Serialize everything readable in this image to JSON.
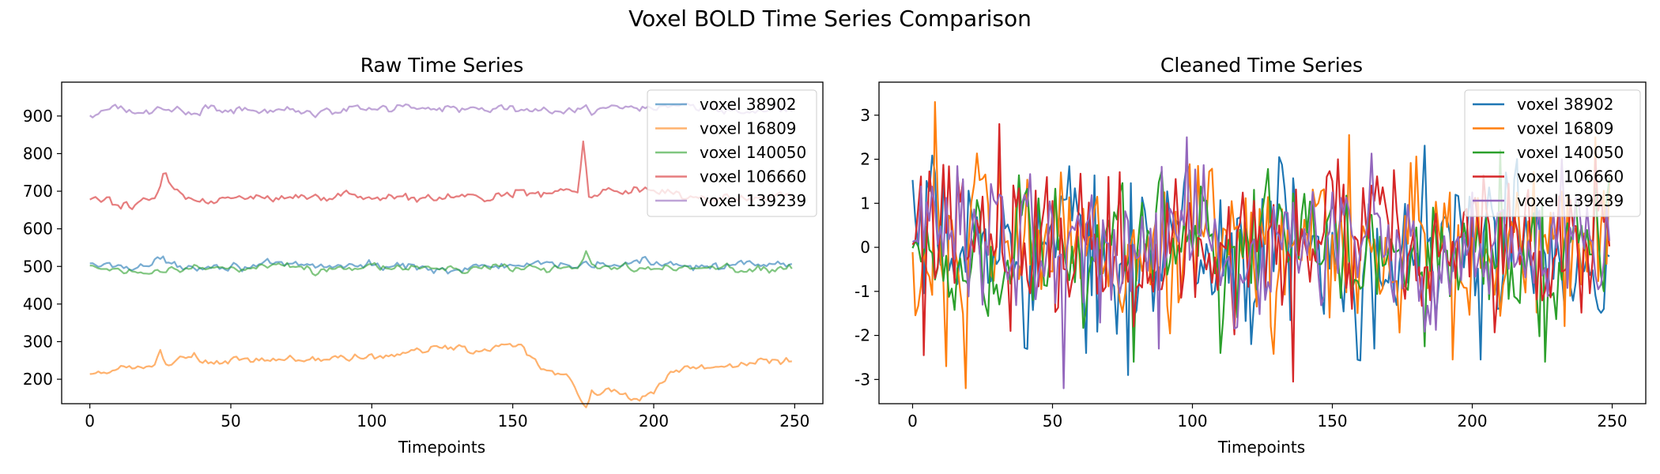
{
  "figure": {
    "title": "Voxel BOLD Time Series Comparison"
  },
  "colors": {
    "voxel_38902": "#1f77b4",
    "voxel_16809": "#ff7f0e",
    "voxel_140050": "#2ca02c",
    "voxel_106660": "#d62728",
    "voxel_139239": "#9467bd"
  },
  "chart_data": [
    {
      "type": "line",
      "title": "Raw Time Series",
      "xlabel": "Timepoints",
      "ylabel": "",
      "xlim": [
        -10,
        260
      ],
      "ylim": [
        135,
        990
      ],
      "xticks": [
        0,
        50,
        100,
        150,
        200,
        250
      ],
      "yticks": [
        200,
        300,
        400,
        500,
        600,
        700,
        800,
        900
      ],
      "legend_location": "top-right",
      "grid": false,
      "x": {
        "start": 0,
        "end": 249,
        "step": 1
      },
      "series": [
        {
          "name": "voxel 38902",
          "color": "#1f77b4",
          "opacity": 0.6,
          "mean": 502,
          "amplitude": 9,
          "smoothness": 0.45,
          "events": [
            [
              25,
              22,
              2
            ],
            [
              128,
              -10,
              8
            ],
            [
              175,
              14,
              2
            ],
            [
              200,
              10,
              8
            ]
          ]
        },
        {
          "name": "voxel 16809",
          "color": "#ff7f0e",
          "opacity": 0.6,
          "mean": 232,
          "amplitude": 10,
          "smoothness": 0.5,
          "events": [
            [
              0,
              -25,
              6
            ],
            [
              25,
              45,
              1
            ],
            [
              35,
              25,
              4
            ],
            [
              60,
              15,
              15
            ],
            [
              100,
              25,
              20
            ],
            [
              130,
              45,
              12
            ],
            [
              150,
              55,
              5
            ],
            [
              162,
              0,
              6
            ],
            [
              176,
              -55,
              3
            ],
            [
              178,
              40,
              1
            ],
            [
              182,
              -50,
              10
            ],
            [
              195,
              -60,
              6
            ],
            [
              205,
              -5,
              10
            ],
            [
              240,
              15,
              10
            ]
          ]
        },
        {
          "name": "voxel 140050",
          "color": "#2ca02c",
          "opacity": 0.6,
          "mean": 496,
          "amplitude": 8,
          "smoothness": 0.45,
          "events": [
            [
              18,
              -12,
              4
            ],
            [
              80,
              -12,
              2
            ],
            [
              176,
              45,
              2
            ],
            [
              235,
              -8,
              6
            ]
          ]
        },
        {
          "name": "voxel 106660",
          "color": "#d62728",
          "opacity": 0.6,
          "mean": 683,
          "amplitude": 11,
          "smoothness": 0.5,
          "events": [
            [
              12,
              -20,
              6
            ],
            [
              26,
              45,
              2
            ],
            [
              30,
              35,
              3
            ],
            [
              40,
              -8,
              6
            ],
            [
              160,
              15,
              10
            ],
            [
              175,
              140,
              1
            ],
            [
              195,
              20,
              10
            ]
          ]
        },
        {
          "name": "voxel 139239",
          "color": "#9467bd",
          "opacity": 0.6,
          "mean": 915,
          "amplitude": 9,
          "smoothness": 0.45,
          "events": [
            [
              0,
              -12,
              3
            ],
            [
              24,
              18,
              1
            ],
            [
              80,
              -15,
              2
            ],
            [
              120,
              8,
              20
            ],
            [
              175,
              15,
              2
            ],
            [
              178,
              -10,
              3
            ],
            [
              205,
              12,
              10
            ]
          ]
        }
      ]
    },
    {
      "type": "line",
      "title": "Cleaned Time Series",
      "xlabel": "Timepoints",
      "ylabel": "",
      "xlim": [
        -12,
        262
      ],
      "ylim": [
        -3.55,
        3.75
      ],
      "xticks": [
        0,
        50,
        100,
        150,
        200,
        250
      ],
      "yticks": [
        -3,
        -2,
        -1,
        0,
        1,
        2,
        3
      ],
      "legend_location": "top-right",
      "grid": false,
      "x": {
        "start": 0,
        "end": 249,
        "step": 1
      },
      "series": [
        {
          "name": "voxel 38902",
          "color": "#1f77b4",
          "opacity": 1,
          "mean": 0,
          "amplitude": 1.15,
          "smoothness": 0.25,
          "events": [
            [
              62,
              -2.4,
              0
            ],
            [
              77,
              -2.9,
              0
            ],
            [
              121,
              -2.2,
              0
            ],
            [
              165,
              -2.3,
              0
            ],
            [
              203,
              -2.55,
              0
            ],
            [
              247,
              -1.4,
              0
            ]
          ]
        },
        {
          "name": "voxel 16809",
          "color": "#ff7f0e",
          "opacity": 1,
          "mean": 0,
          "amplitude": 1.15,
          "smoothness": 0.25,
          "events": [
            [
              8,
              3.3,
              0
            ],
            [
              19,
              -3.2,
              0
            ],
            [
              12,
              -2.7,
              0
            ],
            [
              156,
              2.55,
              0
            ],
            [
              193,
              -2.55,
              0
            ],
            [
              244,
              2.5,
              0
            ]
          ]
        },
        {
          "name": "voxel 140050",
          "color": "#2ca02c",
          "opacity": 1,
          "mean": 0,
          "amplitude": 1.0,
          "smoothness": 0.3,
          "events": [
            [
              79,
              -2.6,
              0
            ],
            [
              110,
              -2.4,
              0
            ],
            [
              183,
              -2.25,
              0
            ],
            [
              210,
              2.2,
              0
            ],
            [
              226,
              -2.6,
              0
            ]
          ]
        },
        {
          "name": "voxel 106660",
          "color": "#d62728",
          "opacity": 1,
          "mean": 0,
          "amplitude": 1.1,
          "smoothness": 0.25,
          "events": [
            [
              4,
              -2.45,
              0
            ],
            [
              31,
              2.8,
              0
            ],
            [
              35,
              -1.9,
              0
            ],
            [
              70,
              1.6,
              0
            ],
            [
              136,
              -3.05,
              0
            ]
          ]
        },
        {
          "name": "voxel 139239",
          "color": "#9467bd",
          "opacity": 1,
          "mean": 0,
          "amplitude": 1.05,
          "smoothness": 0.3,
          "events": [
            [
              54,
              -3.2,
              0
            ],
            [
              98,
              2.5,
              0
            ],
            [
              88,
              -2.3,
              0
            ],
            [
              232,
              2.0,
              0
            ]
          ]
        }
      ]
    }
  ]
}
